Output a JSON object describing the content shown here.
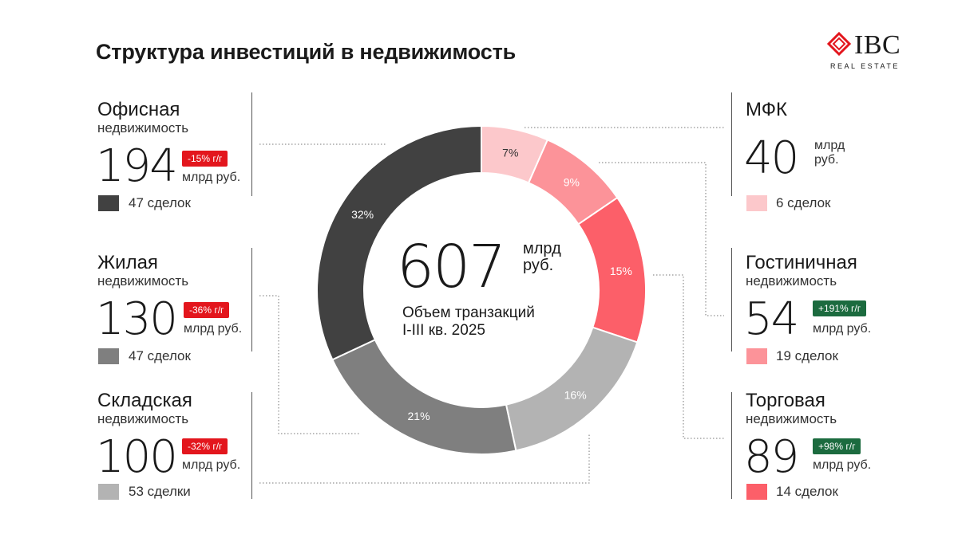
{
  "title": "Структура инвестиций в недвижимость",
  "logo": {
    "name": "IBC",
    "subtitle": "REAL ESTATE",
    "icon": "ibc-logo-icon"
  },
  "center": {
    "total": "607",
    "unit_line1": "млрд",
    "unit_line2": "руб.",
    "caption_line1": "Объем транзакций",
    "caption_line2": "I-III кв. 2025"
  },
  "segments": {
    "office": {
      "line1": "Офисная",
      "line2": "недвижимость",
      "value": "194",
      "change": "-15% г/г",
      "unit": "млрд руб.",
      "deals": "47 сделок",
      "color": "#414141",
      "trend": "negative"
    },
    "resid": {
      "line1": "Жилая",
      "line2": "недвижимость",
      "value": "130",
      "change": "-36% г/г",
      "unit": "млрд руб.",
      "deals": "47 сделок",
      "color": "#7f7f7f",
      "trend": "negative"
    },
    "whouse": {
      "line1": "Складская",
      "line2": "недвижимость",
      "value": "100",
      "change": "-32% г/г",
      "unit": "млрд руб.",
      "deals": "53 сделки",
      "color": "#b3b3b3",
      "trend": "negative"
    },
    "mfk": {
      "line1": "МФК",
      "value": "40",
      "unit_line1": "млрд",
      "unit_line2": "руб.",
      "deals": "6 сделок",
      "color": "#fcc8cb"
    },
    "hotel": {
      "line1": "Гостиничная",
      "line2": "недвижимость",
      "value": "54",
      "change": "+191% г/г",
      "unit": "млрд руб.",
      "deals": "19 сделок",
      "color": "#fc9399",
      "trend": "positive"
    },
    "retail": {
      "line1": "Торговая",
      "line2": "недвижимость",
      "value": "89",
      "change": "+98% г/г",
      "unit": "млрд руб.",
      "deals": "14 сделок",
      "color": "#fc5f69",
      "trend": "positive"
    }
  },
  "chart_data": {
    "type": "pie",
    "donut": true,
    "total": 607,
    "unit": "млрд руб.",
    "slices": [
      {
        "label": "МФК",
        "value": 40,
        "percent_label": "7%",
        "color": "#fcc8cb"
      },
      {
        "label": "Гостиничная недвижимость",
        "value": 54,
        "percent_label": "9%",
        "color": "#fc9399"
      },
      {
        "label": "Торговая недвижимость",
        "value": 89,
        "percent_label": "15%",
        "color": "#fc5f69"
      },
      {
        "label": "Складская недвижимость",
        "value": 100,
        "percent_label": "16%",
        "color": "#b3b3b3"
      },
      {
        "label": "Жилая недвижимость",
        "value": 130,
        "percent_label": "21%",
        "color": "#7f7f7f"
      },
      {
        "label": "Офисная недвижимость",
        "value": 194,
        "percent_label": "32%",
        "color": "#414141"
      }
    ]
  }
}
